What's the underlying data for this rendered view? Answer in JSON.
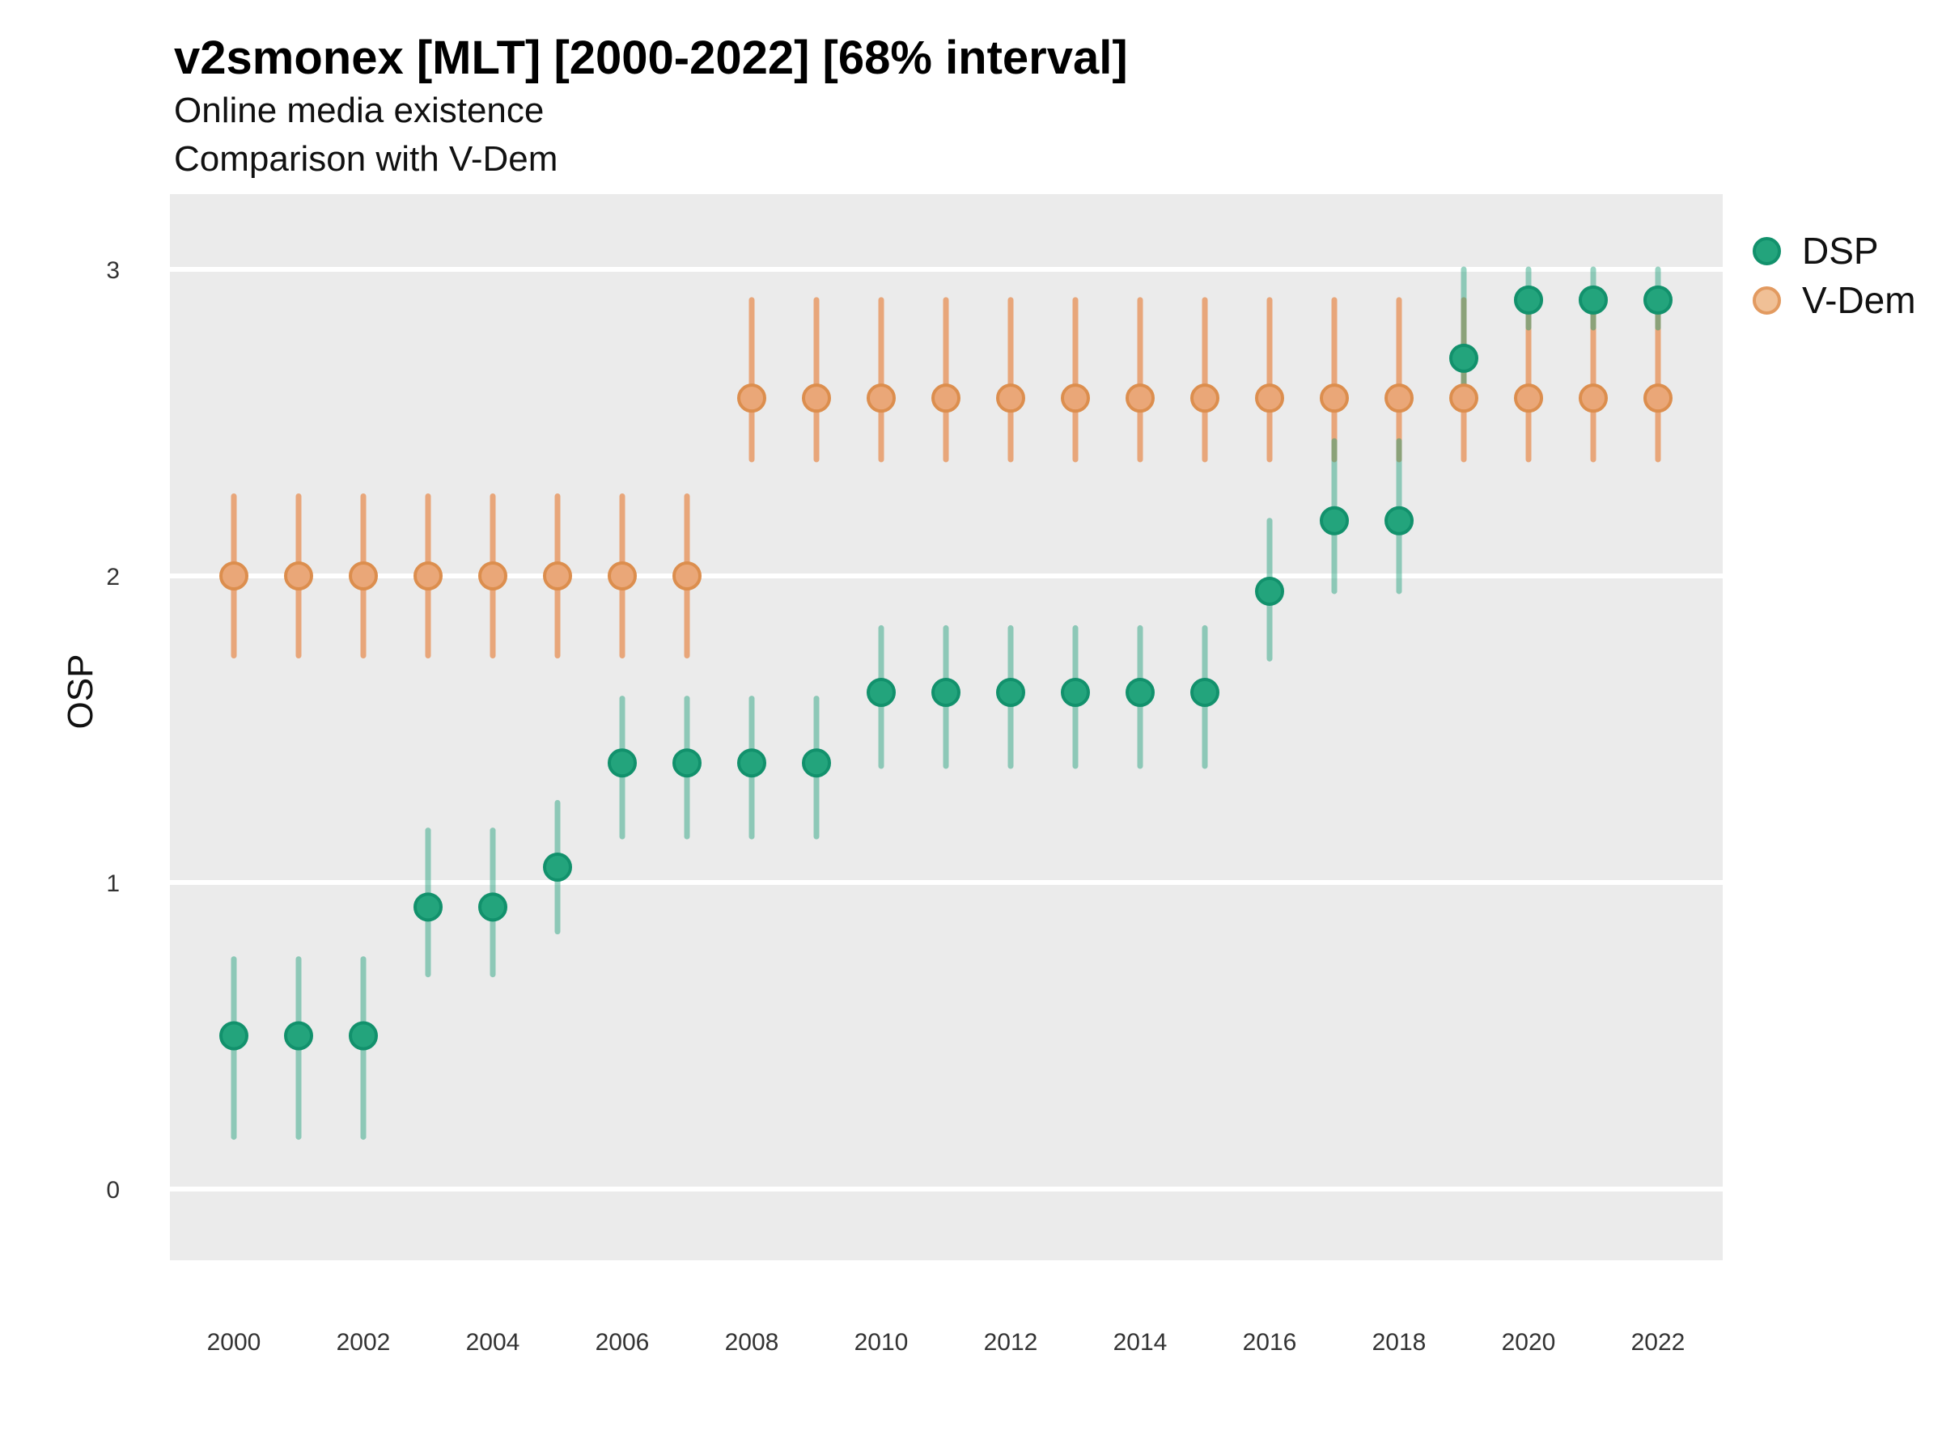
{
  "header": {
    "title": "v2smonex [MLT] [2000-2022] [68% interval]",
    "subtitle1": "Online media existence",
    "subtitle2": "Comparison with V-Dem"
  },
  "axes": {
    "y_label": "OSP",
    "y_ticks": [
      0,
      1,
      2,
      3
    ],
    "x_ticks": [
      2000,
      2002,
      2004,
      2006,
      2008,
      2010,
      2012,
      2014,
      2016,
      2018,
      2020,
      2022
    ]
  },
  "legend": {
    "items": [
      {
        "label": "DSP",
        "dot_fill": "#23a47c",
        "dot_border": "#12916c"
      },
      {
        "label": "V-Dem",
        "dot_fill": "#f0c096",
        "dot_border": "#e29a60"
      }
    ],
    "position": "right"
  },
  "colors": {
    "panel": "#ebebeb",
    "grid": "#ffffff",
    "tick_text": "#333333",
    "dsp_bar": "rgba(27,158,119,0.45)",
    "dsp_dot_fill": "#23a47c",
    "dsp_dot_stroke": "#12916c",
    "vdem_bar": "rgba(230,110,30,0.55)",
    "vdem_dot_fill": "#eaa778",
    "vdem_dot_stroke": "#dc8e4e"
  },
  "chart_data": {
    "type": "pointrange-scatter",
    "title": "v2smonex [MLT] [2000-2022] [68% interval]",
    "xlabel": "",
    "ylabel": "OSP",
    "interval": "68%",
    "x": [
      2000,
      2001,
      2002,
      2003,
      2004,
      2005,
      2006,
      2007,
      2008,
      2009,
      2010,
      2011,
      2012,
      2013,
      2014,
      2015,
      2016,
      2017,
      2018,
      2019,
      2020,
      2021,
      2022
    ],
    "xlim": [
      1999,
      2023
    ],
    "ylim": [
      -0.23,
      3.25
    ],
    "grid": "white major horizontal",
    "legend_position": "right",
    "series": [
      {
        "name": "DSP",
        "values": [
          0.5,
          0.5,
          0.5,
          0.92,
          0.92,
          1.05,
          1.39,
          1.39,
          1.39,
          1.39,
          1.62,
          1.62,
          1.62,
          1.62,
          1.62,
          1.62,
          1.95,
          2.18,
          2.18,
          2.71,
          2.9,
          2.9,
          2.9
        ],
        "lo": [
          0.17,
          0.17,
          0.17,
          0.7,
          0.7,
          0.84,
          1.15,
          1.15,
          1.15,
          1.15,
          1.38,
          1.38,
          1.38,
          1.38,
          1.38,
          1.38,
          1.73,
          1.95,
          1.95,
          2.57,
          2.81,
          2.81,
          2.81
        ],
        "hi": [
          0.75,
          0.75,
          0.75,
          1.17,
          1.17,
          1.26,
          1.6,
          1.6,
          1.6,
          1.6,
          1.83,
          1.83,
          1.83,
          1.83,
          1.83,
          1.83,
          2.18,
          2.44,
          2.44,
          3.0,
          3.0,
          3.0,
          3.0
        ]
      },
      {
        "name": "V-Dem",
        "values": [
          2.0,
          2.0,
          2.0,
          2.0,
          2.0,
          2.0,
          2.0,
          2.0,
          2.58,
          2.58,
          2.58,
          2.58,
          2.58,
          2.58,
          2.58,
          2.58,
          2.58,
          2.58,
          2.58,
          2.58,
          2.58,
          2.58,
          2.58
        ],
        "lo": [
          1.74,
          1.74,
          1.74,
          1.74,
          1.74,
          1.74,
          1.74,
          1.74,
          2.38,
          2.38,
          2.38,
          2.38,
          2.38,
          2.38,
          2.38,
          2.38,
          2.38,
          2.38,
          2.38,
          2.38,
          2.38,
          2.38,
          2.38
        ],
        "hi": [
          2.26,
          2.26,
          2.26,
          2.26,
          2.26,
          2.26,
          2.26,
          2.26,
          2.9,
          2.9,
          2.9,
          2.9,
          2.9,
          2.9,
          2.9,
          2.9,
          2.9,
          2.9,
          2.9,
          2.9,
          2.9,
          2.9,
          2.9
        ]
      }
    ]
  }
}
